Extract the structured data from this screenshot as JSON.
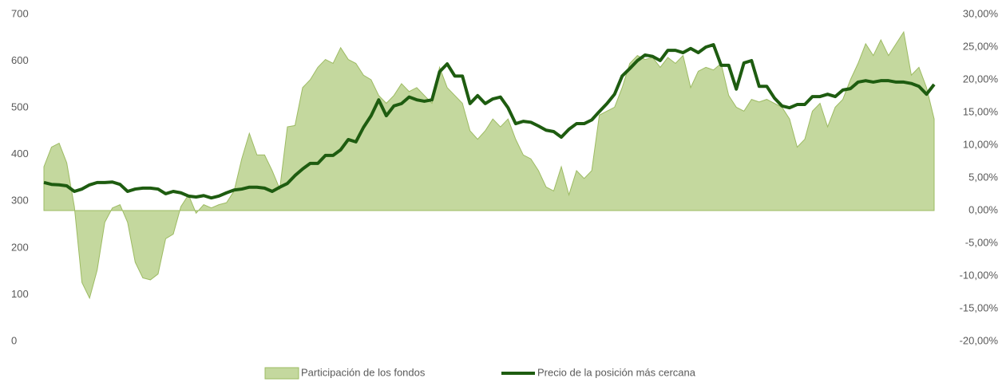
{
  "chart_data": {
    "type": "area-line",
    "series": [
      {
        "name": "Participación de los fondos",
        "type": "area",
        "axis": "y2",
        "color": "#c4d89e",
        "values": [
          6.7,
          9.7,
          10.3,
          7.3,
          0.6,
          -11,
          -13.4,
          -9.1,
          -1.8,
          0.4,
          0.9,
          -1.8,
          -7.9,
          -10.3,
          -10.6,
          -9.7,
          -4.3,
          -3.6,
          0.6,
          2.4,
          -0.4,
          0.9,
          0.4,
          0.9,
          1.2,
          3.0,
          7.9,
          11.8,
          8.5,
          8.5,
          6.1,
          3.3,
          12.8,
          13.0,
          18.8,
          20.0,
          21.9,
          23.1,
          22.5,
          24.9,
          23.1,
          22.5,
          20.7,
          20.0,
          17.6,
          16.4,
          17.6,
          19.4,
          18.2,
          18.8,
          17.6,
          16.4,
          21.9,
          18.8,
          17.6,
          16.4,
          12.2,
          10.9,
          12.2,
          14.0,
          12.8,
          14.0,
          10.9,
          8.5,
          7.9,
          6.1,
          3.6,
          3.0,
          6.7,
          2.4,
          6.1,
          4.9,
          6.1,
          14.6,
          15.2,
          15.8,
          18.8,
          22.5,
          23.7,
          23.1,
          23.4,
          21.9,
          23.4,
          22.5,
          23.7,
          18.8,
          21.3,
          21.9,
          21.5,
          22.5,
          17.6,
          15.8,
          15.2,
          17.0,
          16.6,
          17.0,
          16.4,
          15.8,
          14.0,
          9.7,
          10.9,
          15.2,
          16.4,
          12.8,
          15.8,
          17.0,
          20.0,
          22.5,
          25.5,
          23.7,
          26.1,
          23.7,
          25.5,
          27.3,
          20.7,
          21.9,
          18.8,
          14.0
        ]
      },
      {
        "name": "Precio de la posición más cercana",
        "type": "line",
        "axis": "y",
        "color": "#1e5c10",
        "values": [
          340,
          336,
          335,
          333,
          321,
          326,
          335,
          340,
          340,
          341,
          336,
          321,
          326,
          328,
          328,
          326,
          316,
          321,
          318,
          311,
          309,
          312,
          307,
          311,
          318,
          324,
          326,
          330,
          330,
          328,
          321,
          330,
          338,
          355,
          369,
          381,
          381,
          398,
          398,
          410,
          432,
          427,
          458,
          483,
          517,
          483,
          504,
          509,
          523,
          517,
          514,
          517,
          577,
          594,
          568,
          568,
          509,
          526,
          509,
          519,
          523,
          500,
          466,
          471,
          469,
          461,
          452,
          449,
          437,
          454,
          466,
          466,
          474,
          492,
          509,
          529,
          568,
          584,
          601,
          613,
          610,
          601,
          623,
          623,
          618,
          627,
          618,
          630,
          635,
          591,
          591,
          540,
          596,
          601,
          546,
          546,
          521,
          504,
          500,
          507,
          507,
          524,
          524,
          529,
          524,
          538,
          541,
          555,
          558,
          555,
          558,
          558,
          555,
          555,
          552,
          546,
          529,
          550
        ]
      }
    ],
    "ylim": [
      0,
      700
    ],
    "yticks": [
      0,
      100,
      200,
      300,
      400,
      500,
      600,
      700
    ],
    "y2lim": [
      -20,
      30
    ],
    "y2ticks": [
      {
        "value": -20,
        "label": "-20,00%"
      },
      {
        "value": -15,
        "label": "-15,00%"
      },
      {
        "value": -10,
        "label": "-10,00%"
      },
      {
        "value": -5,
        "label": "-5,00%"
      },
      {
        "value": 0,
        "label": "0,00%"
      },
      {
        "value": 5,
        "label": "5,00%"
      },
      {
        "value": 10,
        "label": "10,00%"
      },
      {
        "value": 15,
        "label": "15,00%"
      },
      {
        "value": 20,
        "label": "20,00%"
      },
      {
        "value": 25,
        "label": "25,00%"
      },
      {
        "value": 30,
        "label": "30,00%"
      }
    ],
    "legend": "bottom"
  }
}
